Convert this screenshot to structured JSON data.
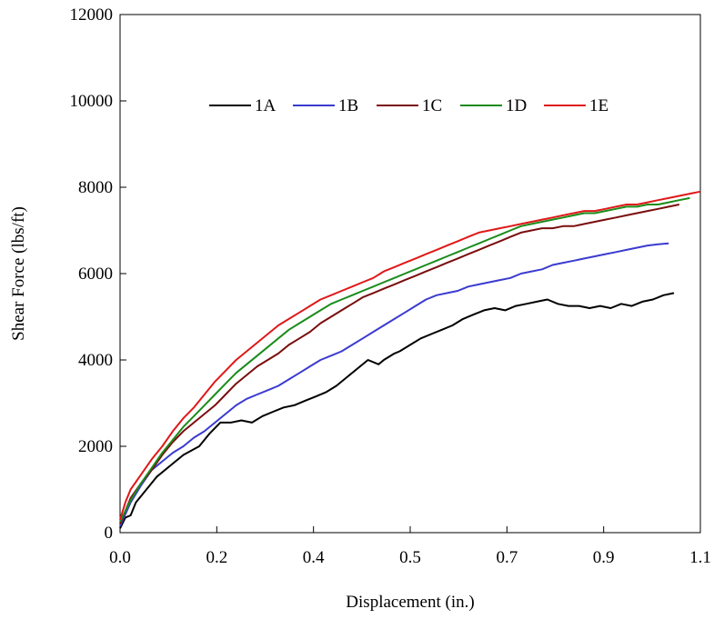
{
  "chart_data": {
    "type": "line",
    "title": "",
    "xlabel": "Displacement (in.)",
    "ylabel": "Shear Force (lbs/ft)",
    "xlim": [
      0.0,
      1.1
    ],
    "ylim": [
      0,
      12000
    ],
    "xticks": [
      "0.0",
      "0.2",
      "0.4",
      "0.5",
      "0.7",
      "0.9",
      "1.1"
    ],
    "yticks": [
      "0",
      "2000",
      "4000",
      "6000",
      "8000",
      "10000",
      "12000"
    ],
    "grid": false,
    "legend_position": "top-center",
    "series": [
      {
        "name": "1A",
        "color": "#000000",
        "x": [
          0,
          0.01,
          0.02,
          0.03,
          0.05,
          0.07,
          0.1,
          0.12,
          0.15,
          0.17,
          0.19,
          0.21,
          0.23,
          0.25,
          0.27,
          0.29,
          0.31,
          0.33,
          0.35,
          0.37,
          0.39,
          0.41,
          0.43,
          0.45,
          0.47,
          0.49,
          0.5,
          0.52,
          0.53,
          0.55,
          0.57,
          0.59,
          0.61,
          0.63,
          0.65,
          0.67,
          0.69,
          0.71,
          0.73,
          0.75,
          0.77,
          0.79,
          0.81,
          0.83,
          0.85,
          0.87,
          0.89,
          0.91,
          0.93,
          0.95,
          0.97,
          0.99,
          1.01,
          1.03,
          1.05
        ],
        "y": [
          100,
          350,
          400,
          700,
          1000,
          1300,
          1600,
          1800,
          2000,
          2300,
          2550,
          2550,
          2600,
          2550,
          2700,
          2800,
          2900,
          2950,
          3050,
          3150,
          3250,
          3400,
          3600,
          3800,
          4000,
          3900,
          4000,
          4150,
          4200,
          4350,
          4500,
          4600,
          4700,
          4800,
          4950,
          5050,
          5150,
          5200,
          5150,
          5250,
          5300,
          5350,
          5400,
          5300,
          5250,
          5250,
          5200,
          5250,
          5200,
          5300,
          5250,
          5350,
          5400,
          5500,
          5550
        ]
      },
      {
        "name": "1B",
        "color": "#3b3bd0",
        "x": [
          0,
          0.02,
          0.04,
          0.06,
          0.08,
          0.1,
          0.12,
          0.14,
          0.16,
          0.18,
          0.2,
          0.22,
          0.24,
          0.26,
          0.28,
          0.3,
          0.32,
          0.34,
          0.36,
          0.38,
          0.4,
          0.42,
          0.44,
          0.46,
          0.48,
          0.5,
          0.52,
          0.54,
          0.56,
          0.58,
          0.6,
          0.62,
          0.64,
          0.66,
          0.68,
          0.7,
          0.72,
          0.74,
          0.76,
          0.78,
          0.8,
          0.82,
          0.84,
          0.86,
          0.88,
          0.9,
          0.92,
          0.94,
          0.96,
          0.98,
          1.0,
          1.02,
          1.04
        ],
        "y": [
          150,
          700,
          1100,
          1450,
          1650,
          1850,
          2000,
          2200,
          2350,
          2550,
          2750,
          2950,
          3100,
          3200,
          3300,
          3400,
          3550,
          3700,
          3850,
          4000,
          4100,
          4200,
          4350,
          4500,
          4650,
          4800,
          4950,
          5100,
          5250,
          5400,
          5500,
          5550,
          5600,
          5700,
          5750,
          5800,
          5850,
          5900,
          6000,
          6050,
          6100,
          6200,
          6250,
          6300,
          6350,
          6400,
          6450,
          6500,
          6550,
          6600,
          6650,
          6680,
          6700
        ]
      },
      {
        "name": "1C",
        "color": "#7a0d0d",
        "x": [
          0,
          0.02,
          0.04,
          0.06,
          0.08,
          0.1,
          0.12,
          0.14,
          0.16,
          0.18,
          0.2,
          0.22,
          0.24,
          0.26,
          0.28,
          0.3,
          0.32,
          0.34,
          0.36,
          0.38,
          0.4,
          0.42,
          0.44,
          0.46,
          0.48,
          0.5,
          0.52,
          0.54,
          0.56,
          0.58,
          0.6,
          0.62,
          0.64,
          0.66,
          0.68,
          0.7,
          0.72,
          0.74,
          0.76,
          0.78,
          0.8,
          0.82,
          0.84,
          0.86,
          0.88,
          0.9,
          0.92,
          0.94,
          0.96,
          0.98,
          1.0,
          1.02,
          1.04,
          1.06
        ],
        "y": [
          200,
          800,
          1150,
          1450,
          1800,
          2100,
          2350,
          2550,
          2750,
          2950,
          3200,
          3450,
          3650,
          3850,
          4000,
          4150,
          4350,
          4500,
          4650,
          4850,
          5000,
          5150,
          5300,
          5450,
          5550,
          5650,
          5750,
          5850,
          5950,
          6050,
          6150,
          6250,
          6350,
          6450,
          6550,
          6650,
          6750,
          6850,
          6950,
          7000,
          7050,
          7050,
          7100,
          7100,
          7150,
          7200,
          7250,
          7300,
          7350,
          7400,
          7450,
          7500,
          7550,
          7600
        ]
      },
      {
        "name": "1D",
        "color": "#1a8c1a",
        "x": [
          0,
          0.02,
          0.04,
          0.06,
          0.08,
          0.1,
          0.12,
          0.14,
          0.16,
          0.18,
          0.2,
          0.22,
          0.24,
          0.26,
          0.28,
          0.3,
          0.32,
          0.34,
          0.36,
          0.38,
          0.4,
          0.42,
          0.44,
          0.46,
          0.48,
          0.5,
          0.52,
          0.54,
          0.56,
          0.58,
          0.6,
          0.62,
          0.64,
          0.66,
          0.68,
          0.7,
          0.72,
          0.74,
          0.76,
          0.78,
          0.8,
          0.82,
          0.84,
          0.86,
          0.88,
          0.9,
          0.92,
          0.94,
          0.96,
          0.98,
          1.0,
          1.02,
          1.04,
          1.06,
          1.08
        ],
        "y": [
          250,
          750,
          1150,
          1500,
          1850,
          2150,
          2450,
          2700,
          2950,
          3200,
          3450,
          3700,
          3900,
          4100,
          4300,
          4500,
          4700,
          4850,
          5000,
          5150,
          5300,
          5400,
          5500,
          5600,
          5700,
          5800,
          5900,
          6000,
          6100,
          6200,
          6300,
          6400,
          6500,
          6600,
          6700,
          6800,
          6900,
          7000,
          7100,
          7150,
          7200,
          7250,
          7300,
          7350,
          7400,
          7400,
          7450,
          7500,
          7550,
          7550,
          7600,
          7600,
          7650,
          7700,
          7750
        ]
      },
      {
        "name": "1E",
        "color": "#e01818",
        "x": [
          0,
          0.01,
          0.02,
          0.04,
          0.06,
          0.08,
          0.1,
          0.12,
          0.14,
          0.16,
          0.18,
          0.2,
          0.22,
          0.24,
          0.26,
          0.28,
          0.3,
          0.32,
          0.34,
          0.36,
          0.38,
          0.4,
          0.42,
          0.44,
          0.46,
          0.48,
          0.5,
          0.52,
          0.54,
          0.56,
          0.58,
          0.6,
          0.62,
          0.64,
          0.66,
          0.68,
          0.7,
          0.72,
          0.74,
          0.76,
          0.78,
          0.8,
          0.82,
          0.84,
          0.86,
          0.88,
          0.9,
          0.92,
          0.94,
          0.96,
          0.98,
          1.0,
          1.02,
          1.04,
          1.06,
          1.08,
          1.1
        ],
        "y": [
          300,
          700,
          1000,
          1350,
          1700,
          2000,
          2350,
          2650,
          2900,
          3200,
          3500,
          3750,
          4000,
          4200,
          4400,
          4600,
          4800,
          4950,
          5100,
          5250,
          5400,
          5500,
          5600,
          5700,
          5800,
          5900,
          6050,
          6150,
          6250,
          6350,
          6450,
          6550,
          6650,
          6750,
          6850,
          6950,
          7000,
          7050,
          7100,
          7150,
          7200,
          7250,
          7300,
          7350,
          7400,
          7450,
          7450,
          7500,
          7550,
          7600,
          7600,
          7650,
          7700,
          7750,
          7800,
          7850,
          7900
        ]
      }
    ]
  }
}
